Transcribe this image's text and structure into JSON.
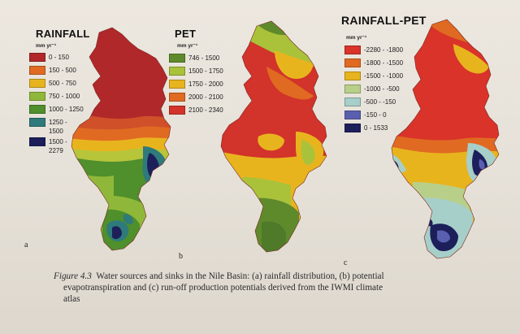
{
  "panels": [
    {
      "id": "a",
      "title": "RAINFALL",
      "unit": "mm yr⁻¹",
      "letter": "a",
      "legend": [
        {
          "label": "0 - 150",
          "color": "#b0282a"
        },
        {
          "label": "150 - 500",
          "color": "#e06a22"
        },
        {
          "label": "500 - 750",
          "color": "#e8b41e"
        },
        {
          "label": "750 - 1000",
          "color": "#8fb83a"
        },
        {
          "label": "1000 - 1250",
          "color": "#4f8f2c"
        },
        {
          "label": "1250 - 1500",
          "color": "#2f7a7a"
        },
        {
          "label": "1500 - 2279",
          "color": "#1c1f5a"
        }
      ]
    },
    {
      "id": "b",
      "title": "PET",
      "unit": "mm yr⁻¹",
      "letter": "b",
      "legend": [
        {
          "label": "746 - 1500",
          "color": "#5f8a2c"
        },
        {
          "label": "1500 - 1750",
          "color": "#a9c23a"
        },
        {
          "label": "1750 - 2000",
          "color": "#e8b41e"
        },
        {
          "label": "2000 - 2100",
          "color": "#e06a22"
        },
        {
          "label": "2100 - 2340",
          "color": "#d2332a"
        }
      ]
    },
    {
      "id": "c",
      "title": "RAINFALL-PET",
      "unit": "mm yr⁻¹",
      "letter": "c",
      "legend": [
        {
          "label": "-2280 - -1800",
          "color": "#d9332a"
        },
        {
          "label": "-1800 - -1500",
          "color": "#e06a22"
        },
        {
          "label": "-1500 - -1000",
          "color": "#e8b41e"
        },
        {
          "label": "-1000 - -500",
          "color": "#b8cf8a"
        },
        {
          "label": "-500 - -150",
          "color": "#a6cfc9"
        },
        {
          "label": "-150 - 0",
          "color": "#5b5fb0"
        },
        {
          "label": "0 - 1533",
          "color": "#1c1f5a"
        }
      ]
    }
  ],
  "caption": {
    "figure_label": "Figure 4.3",
    "line1": "Water sources and sinks in the Nile Basin: (a) rainfall distribution, (b) potential",
    "line2": "evapotranspiration and (c) run-off production potentials derived from the IWMI climate",
    "line3": "atlas"
  }
}
